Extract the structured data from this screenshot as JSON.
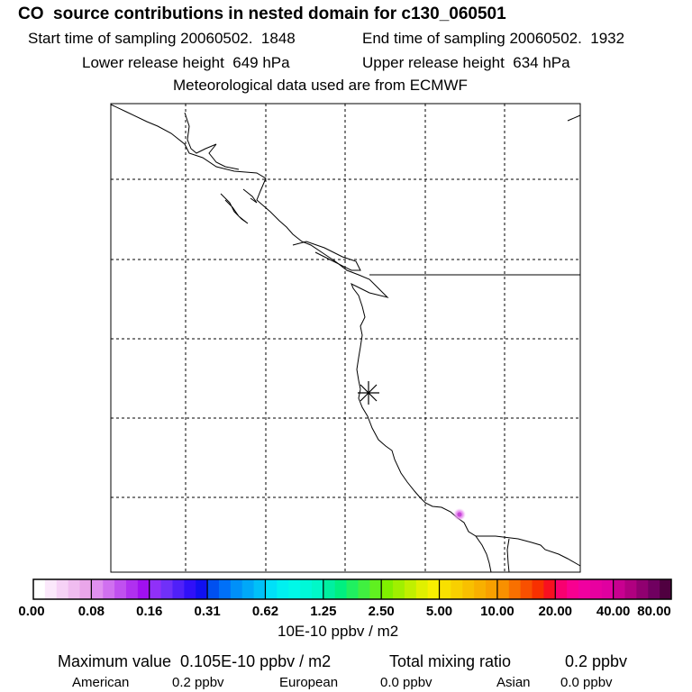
{
  "header": {
    "title": "CO  source contributions in nested domain for c130_060501",
    "start_time": "Start time of sampling 20060502.  1848",
    "end_time": "End time of sampling 20060502.  1932",
    "lower_release": "Lower release height  649 hPa",
    "upper_release": "Upper release height  634 hPa",
    "met_data": "Meteorological data used are from ECMWF"
  },
  "map": {
    "marker": "asterisk",
    "hotspot_color": "#e070e8",
    "gridlines": "dashed"
  },
  "colorbar": {
    "units": "10E-10 ppbv / m2",
    "labels": [
      "0.00",
      "0.08",
      "0.16",
      "0.31",
      "0.62",
      "1.25",
      "2.50",
      "5.00",
      "10.00",
      "20.00",
      "40.00",
      "80.00"
    ],
    "groups": [
      [
        "#ffffff",
        "#fbe8fb",
        "#f6d2f6",
        "#f0bcf0",
        "#eaa6ea"
      ],
      [
        "#e090f0",
        "#d070f0",
        "#c050f0",
        "#b030f0",
        "#a010f0"
      ],
      [
        "#9030f8",
        "#7030f8",
        "#5020f8",
        "#3010f8",
        "#1010f0"
      ],
      [
        "#0050f0",
        "#0070f8",
        "#0090f8",
        "#00a8f8",
        "#00c0f8"
      ],
      [
        "#00e0f8",
        "#00f0f0",
        "#00f8e8",
        "#00f8d8",
        "#00f8c8"
      ],
      [
        "#00f0a0",
        "#00f080",
        "#20f060",
        "#40f040",
        "#60f020"
      ],
      [
        "#80f000",
        "#a0f000",
        "#c0f000",
        "#e0f000",
        "#f8f000"
      ],
      [
        "#f8e000",
        "#f8d000",
        "#f8c000",
        "#f8b000",
        "#f8a000"
      ],
      [
        "#f89000",
        "#f87000",
        "#f85000",
        "#f83000",
        "#f81020"
      ],
      [
        "#f80070",
        "#f80090",
        "#f000a0",
        "#e800a0",
        "#e000a0"
      ],
      [
        "#c80090",
        "#b00080",
        "#900070",
        "#700060",
        "#500040"
      ]
    ]
  },
  "footer": {
    "max_value": "Maximum value  0.105E-10 ppbv / m2",
    "total_label": "Total mixing ratio",
    "total_value": "0.2 ppbv",
    "sources": [
      {
        "name": "American",
        "value": "0.2 ppbv"
      },
      {
        "name": "European",
        "value": "0.0 ppbv"
      },
      {
        "name": "Asian",
        "value": "0.0 ppbv"
      }
    ]
  }
}
